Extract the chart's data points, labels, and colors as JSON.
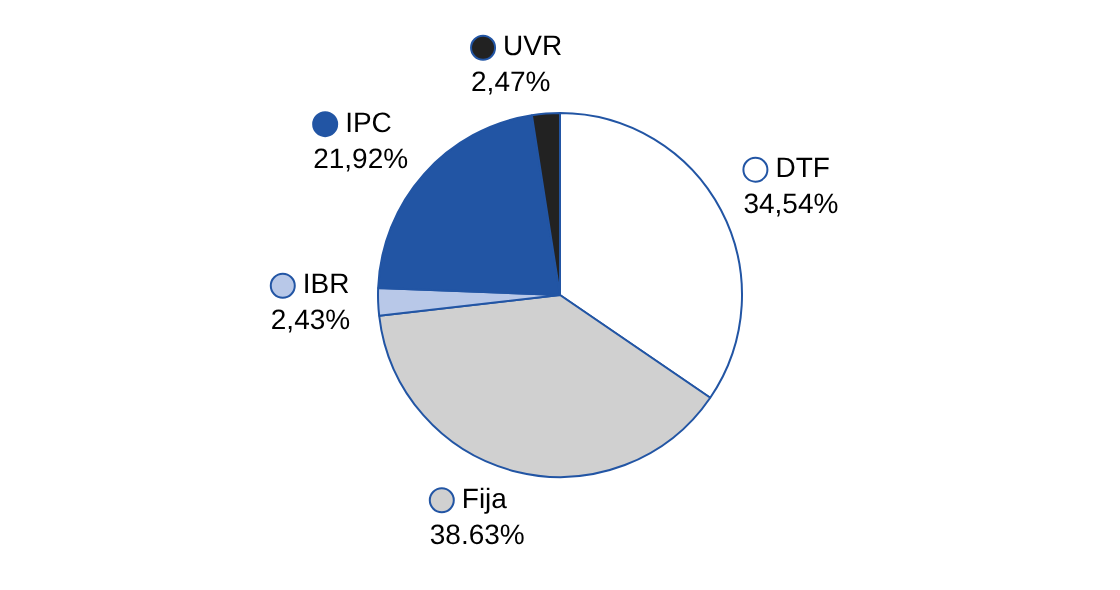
{
  "chart_data": {
    "type": "pie",
    "categories": [
      "DTF",
      "Fija",
      "IBR",
      "IPC",
      "UVR"
    ],
    "values": [
      34.54,
      38.63,
      2.43,
      21.92,
      2.47
    ],
    "value_labels": [
      "34,54%",
      "38.63%",
      "2,43%",
      "21,92%",
      "2,47%"
    ],
    "colors": [
      "#ffffff",
      "#d0d0d0",
      "#b8c8e8",
      "#2255a4",
      "#222222"
    ],
    "legend": "right"
  }
}
